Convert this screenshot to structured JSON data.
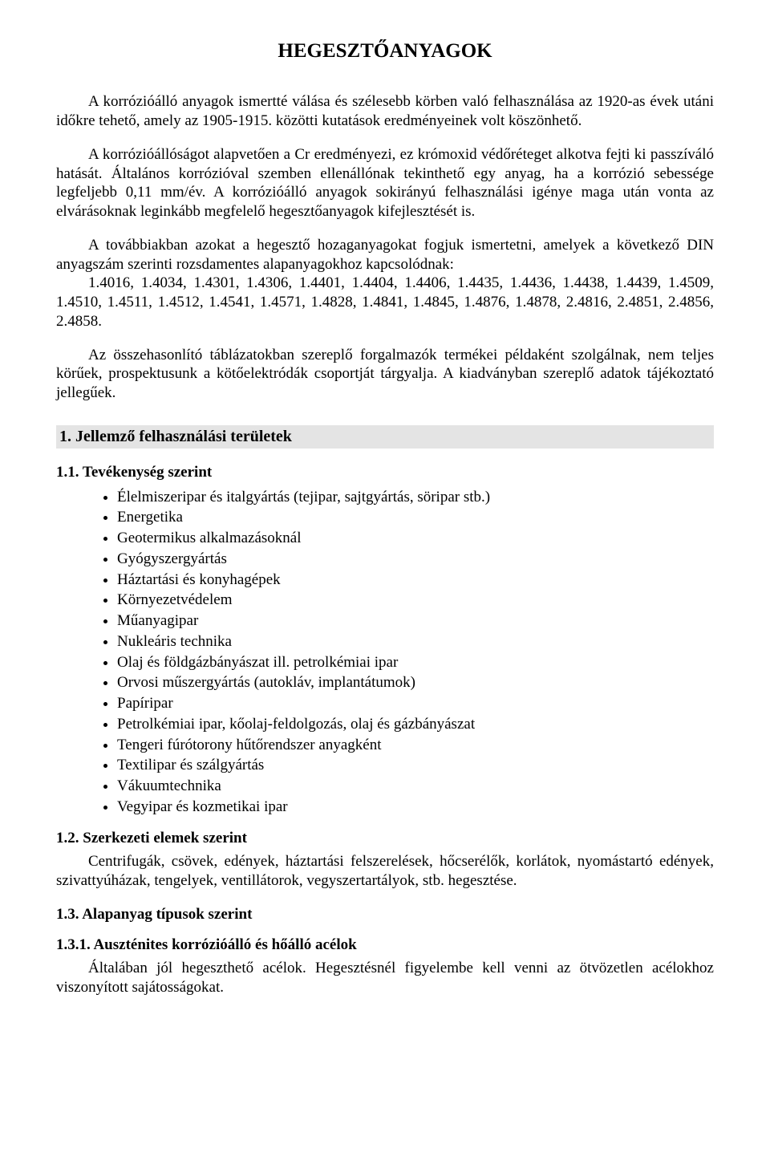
{
  "title": "HEGESZTŐANYAGOK",
  "p1": "A korrózióálló anyagok ismertté válása és szélesebb körben való felhasználása az 1920-as évek utáni időkre tehető, amely az 1905-1915. közötti kutatások eredményeinek volt köszönhető.",
  "p2": "A korrózióállóságot alapvetően a Cr eredményezi, ez krómoxid védőréteget alkotva fejti ki passzíváló hatását. Általános korrózióval szemben ellenállónak tekinthető egy anyag, ha a korrózió sebessége legfeljebb 0,11 mm/év. A korrózióálló anyagok sokirányú felhasználási igénye maga után vonta az elvárásoknak leginkább megfelelő hegesztőanyagok kifejlesztését is.",
  "p3a": "A továbbiakban azokat a hegesztő hozaganyagokat fogjuk ismertetni, amelyek a következő DIN anyagszám szerinti rozsdamentes alapanyagokhoz kapcsolódnak:",
  "p3b": "1.4016, 1.4034, 1.4301, 1.4306, 1.4401, 1.4404, 1.4406, 1.4435, 1.4436, 1.4438, 1.4439, 1.4509, 1.4510, 1.4511, 1.4512, 1.4541, 1.4571, 1.4828, 1.4841, 1.4845, 1.4876, 1.4878, 2.4816, 2.4851, 2.4856, 2.4858.",
  "p4": "Az összehasonlító táblázatokban szereplő forgalmazók termékei példaként szolgálnak, nem teljes körűek, prospektusunk a kötőelektródák csoportját tárgyalja. A kiadványban szereplő adatok tájékoztató jellegűek.",
  "section1": "1. Jellemző felhasználási területek",
  "h11": "1.1. Tevékenység szerint",
  "list11": [
    "Élelmiszeripar és italgyártás (tejipar, sajtgyártás, söripar stb.)",
    "Energetika",
    "Geotermikus alkalmazásoknál",
    "Gyógyszergyártás",
    "Háztartási és konyhagépek",
    "Környezetvédelem",
    "Műanyagipar",
    "Nukleáris technika",
    "Olaj és földgázbányászat ill. petrolkémiai ipar",
    "Orvosi műszergyártás (autokláv, implantátumok)",
    "Papíripar",
    "Petrolkémiai ipar, kőolaj-feldolgozás, olaj és gázbányászat",
    "Tengeri fúrótorony hűtőrendszer anyagként",
    "Textilipar és szálgyártás",
    "Vákuumtechnika",
    "Vegyipar és kozmetikai ipar"
  ],
  "h12": "1.2. Szerkezeti elemek szerint",
  "p12": "Centrifugák, csövek, edények, háztartási felszerelések, hőcserélők, korlátok, nyomástartó edények, szivattyúházak, tengelyek, ventillátorok, vegyszertartályok, stb. hegesztése.",
  "h13": "1.3. Alapanyag típusok szerint",
  "h131": "1.3.1. Auszténites korrózióálló és hőálló acélok",
  "p131": "Általában jól hegeszthető acélok. Hegesztésnél figyelembe kell venni az ötvözetlen acélokhoz viszonyított sajátosságokat."
}
